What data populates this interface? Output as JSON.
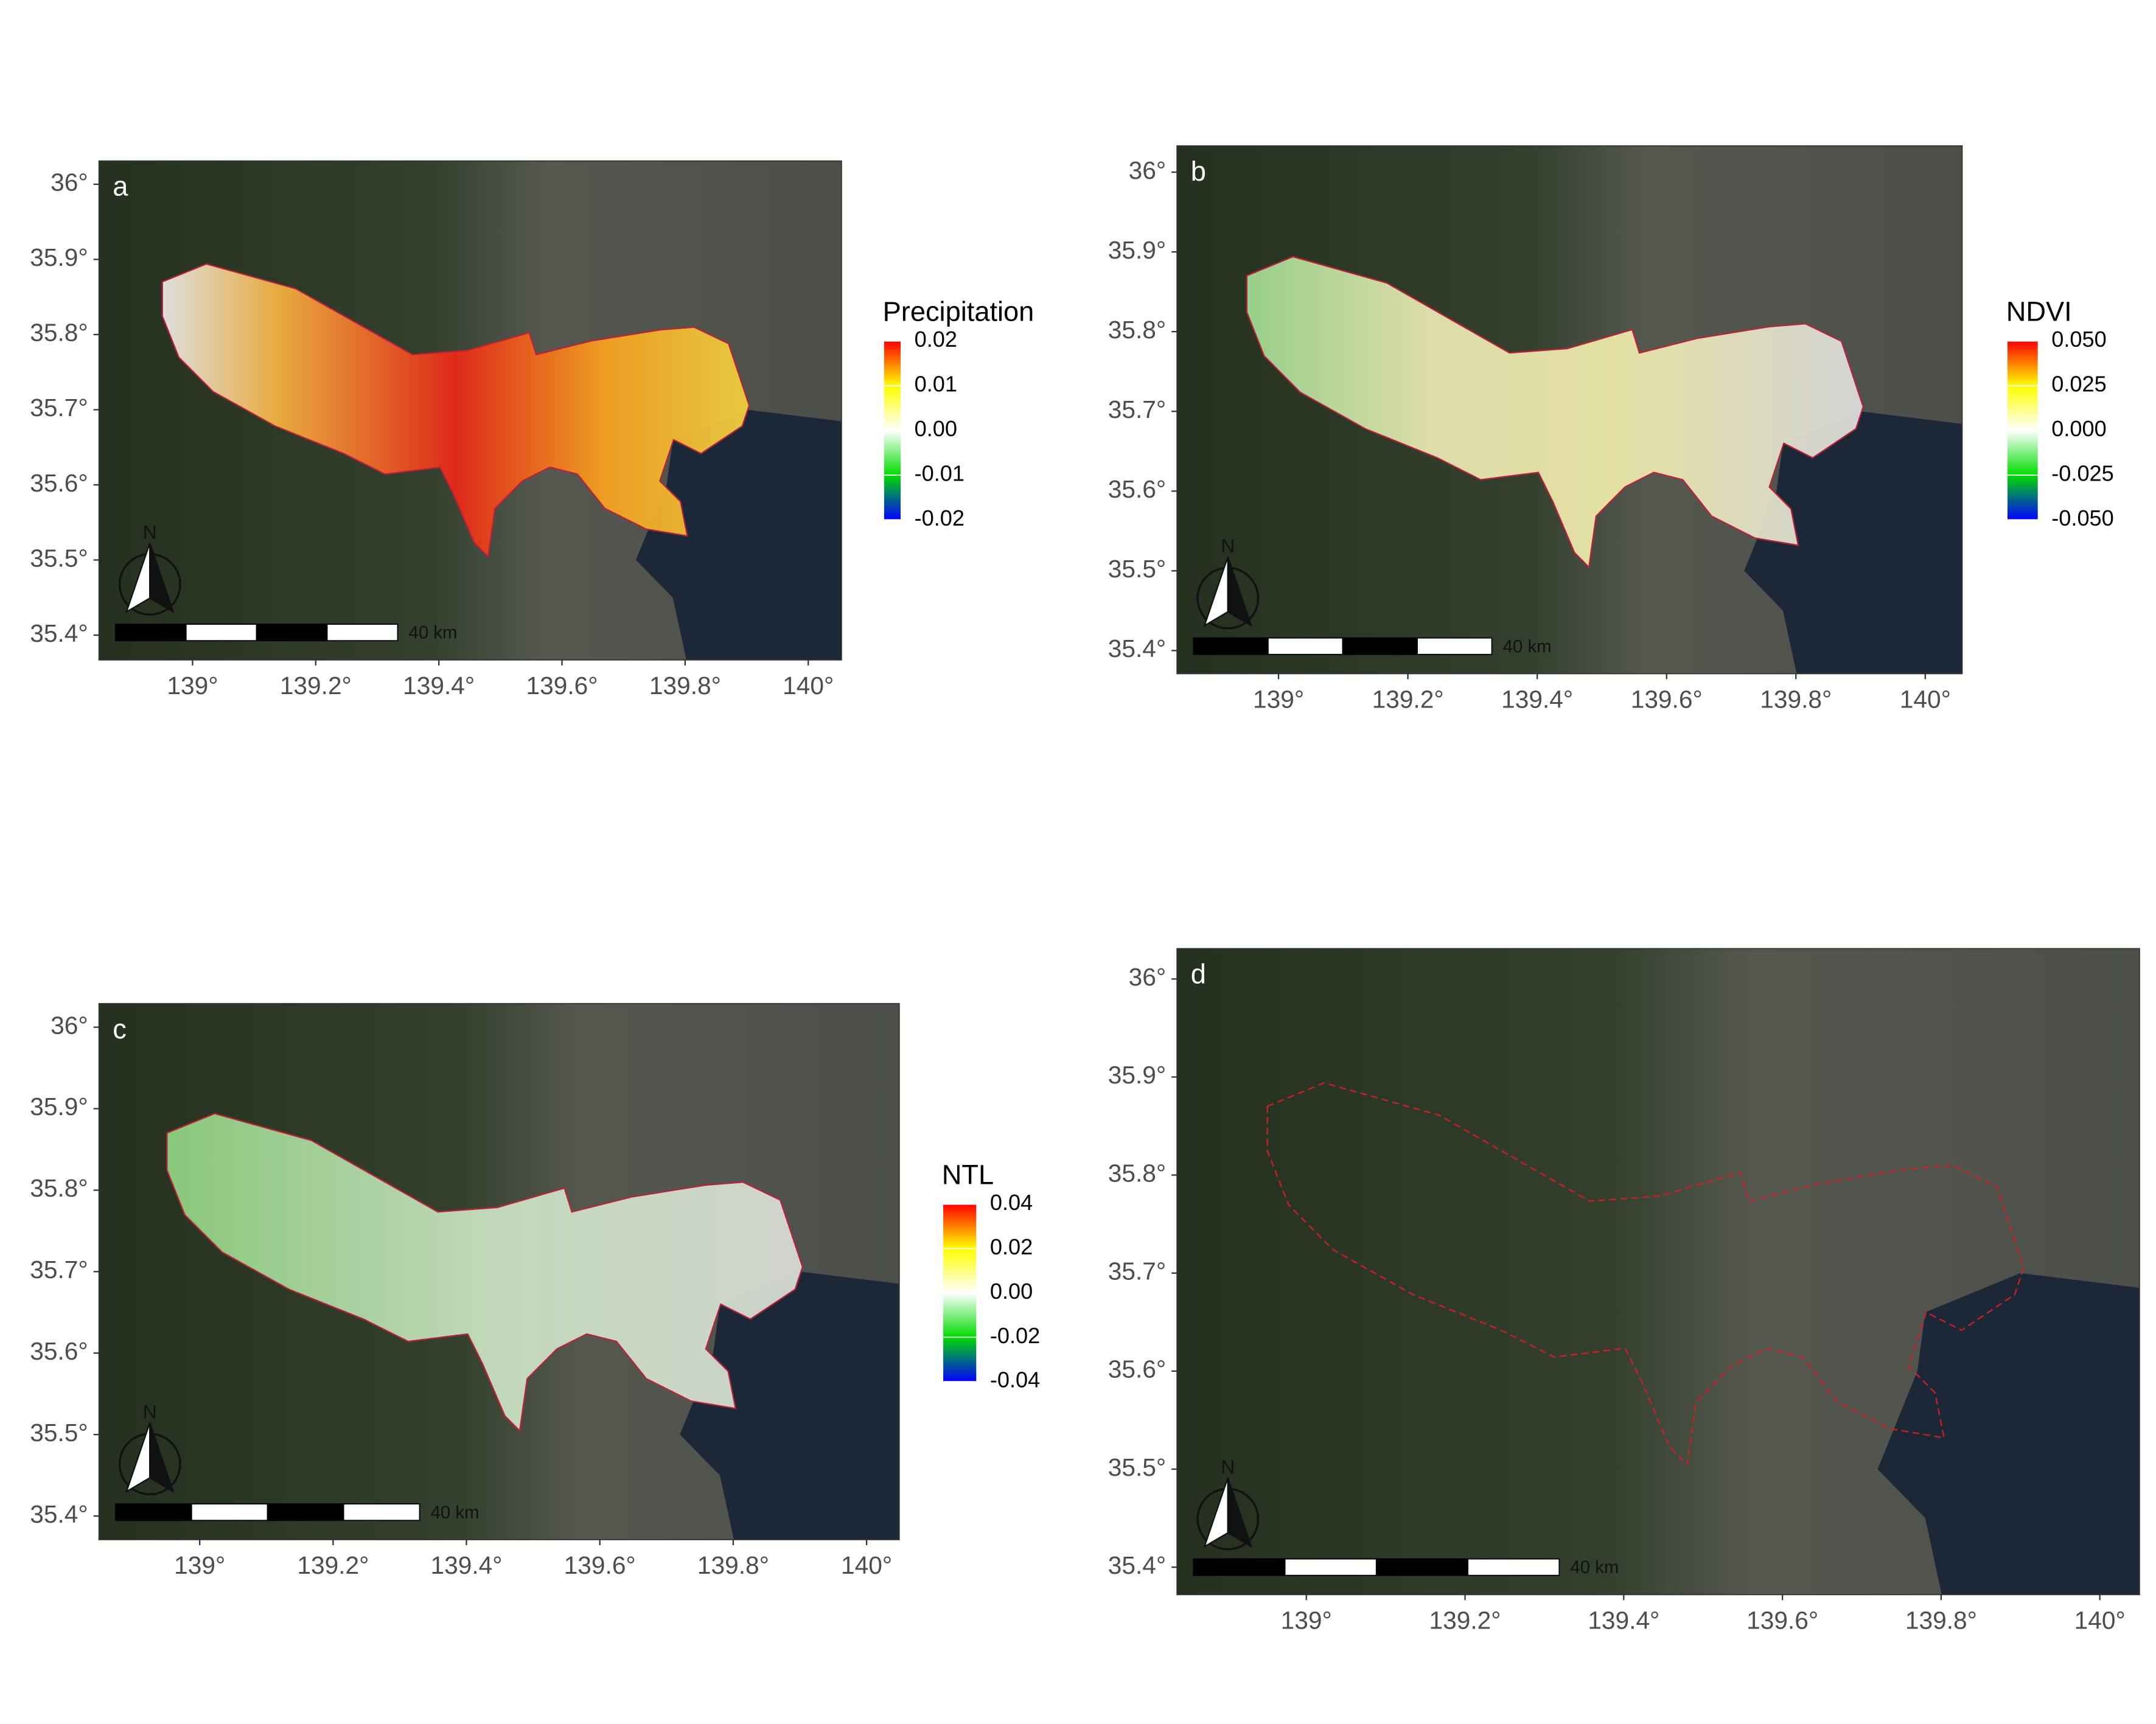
{
  "panels": [
    {
      "label": "a",
      "xlim": [
        138.848,
        140.054
      ],
      "ylim": [
        35.367,
        36.031
      ],
      "xticks": [
        {
          "value": 139,
          "label": "139°"
        },
        {
          "value": 139.2,
          "label": "139.2°"
        },
        {
          "value": 139.4,
          "label": "139.4°"
        },
        {
          "value": 139.6,
          "label": "139.6°"
        },
        {
          "value": 139.8,
          "label": "139.8°"
        },
        {
          "value": 140,
          "label": "140°"
        }
      ],
      "yticks": [
        {
          "value": 35.4,
          "label": "35.4°"
        },
        {
          "value": 35.5,
          "label": "35.5°"
        },
        {
          "value": 35.6,
          "label": "35.6°"
        },
        {
          "value": 35.7,
          "label": "35.7°"
        },
        {
          "value": 35.8,
          "label": "35.8°"
        },
        {
          "value": 35.9,
          "label": "35.9°"
        },
        {
          "value": 36,
          "label": "36°"
        }
      ],
      "legend": {
        "title": "Precipitation",
        "lim": [
          -0.02,
          0.02
        ],
        "ticks": [
          0.02,
          0.01,
          {
            "value": 0,
            "label": "0.00"
          },
          -0.01,
          -0.02
        ]
      },
      "north": "N",
      "scale": "40 km"
    },
    {
      "label": "b",
      "xlim": [
        138.843,
        140.057
      ],
      "ylim": [
        35.371,
        36.033
      ],
      "xticks": [
        {
          "value": 139,
          "label": "139°"
        },
        {
          "value": 139.2,
          "label": "139.2°"
        },
        {
          "value": 139.4,
          "label": "139.4°"
        },
        {
          "value": 139.6,
          "label": "139.6°"
        },
        {
          "value": 139.8,
          "label": "139.8°"
        },
        {
          "value": 140,
          "label": "140°"
        }
      ],
      "yticks": [
        {
          "value": 35.4,
          "label": "35.4°"
        },
        {
          "value": 35.5,
          "label": "35.5°"
        },
        {
          "value": 35.6,
          "label": "35.6°"
        },
        {
          "value": 35.7,
          "label": "35.7°"
        },
        {
          "value": 35.8,
          "label": "35.8°"
        },
        {
          "value": 35.9,
          "label": "35.9°"
        },
        {
          "value": 36,
          "label": "36°"
        }
      ],
      "legend": {
        "title": "NDVI",
        "lim": [
          -0.05,
          0.05
        ],
        "ticks": [
          {
            "value": 0.05,
            "label": "0.050"
          },
          0.025,
          {
            "value": 0,
            "label": "0.000"
          },
          -0.025,
          {
            "value": -0.05,
            "label": "-0.050"
          }
        ]
      },
      "north": "N",
      "scale": "40 km"
    },
    {
      "label": "c",
      "xlim": [
        138.849,
        140.049
      ],
      "ylim": [
        35.371,
        36.029
      ],
      "xticks": [
        {
          "value": 139,
          "label": "139°"
        },
        {
          "value": 139.2,
          "label": "139.2°"
        },
        {
          "value": 139.4,
          "label": "139.4°"
        },
        {
          "value": 139.6,
          "label": "139.6°"
        },
        {
          "value": 139.8,
          "label": "139.8°"
        },
        {
          "value": 140,
          "label": "140°"
        }
      ],
      "yticks": [
        {
          "value": 35.4,
          "label": "35.4°"
        },
        {
          "value": 35.5,
          "label": "35.5°"
        },
        {
          "value": 35.6,
          "label": "35.6°"
        },
        {
          "value": 35.7,
          "label": "35.7°"
        },
        {
          "value": 35.8,
          "label": "35.8°"
        },
        {
          "value": 35.9,
          "label": "35.9°"
        },
        {
          "value": 36,
          "label": "36°"
        }
      ],
      "legend": {
        "title": "NTL",
        "lim": [
          -0.04,
          0.04
        ],
        "ticks": [
          0.04,
          0.02,
          {
            "value": 0,
            "label": "0.00"
          },
          -0.02,
          -0.04
        ]
      },
      "north": "N",
      "scale": "40 km"
    },
    {
      "label": "d",
      "xlim": [
        138.837,
        140.05
      ],
      "ylim": [
        35.372,
        36.031
      ],
      "xticks": [
        {
          "value": 139,
          "label": "139°"
        },
        {
          "value": 139.2,
          "label": "139.2°"
        },
        {
          "value": 139.4,
          "label": "139.4°"
        },
        {
          "value": 139.6,
          "label": "139.6°"
        },
        {
          "value": 139.8,
          "label": "139.8°"
        },
        {
          "value": 140,
          "label": "140°"
        }
      ],
      "yticks": [
        {
          "value": 35.4,
          "label": "35.4°"
        },
        {
          "value": 35.5,
          "label": "35.5°"
        },
        {
          "value": 35.6,
          "label": "35.6°"
        },
        {
          "value": 35.7,
          "label": "35.7°"
        },
        {
          "value": 35.8,
          "label": "35.8°"
        },
        {
          "value": 35.9,
          "label": "35.9°"
        },
        {
          "value": 36,
          "label": "36°"
        }
      ],
      "north": "N",
      "scale": "40 km"
    }
  ]
}
